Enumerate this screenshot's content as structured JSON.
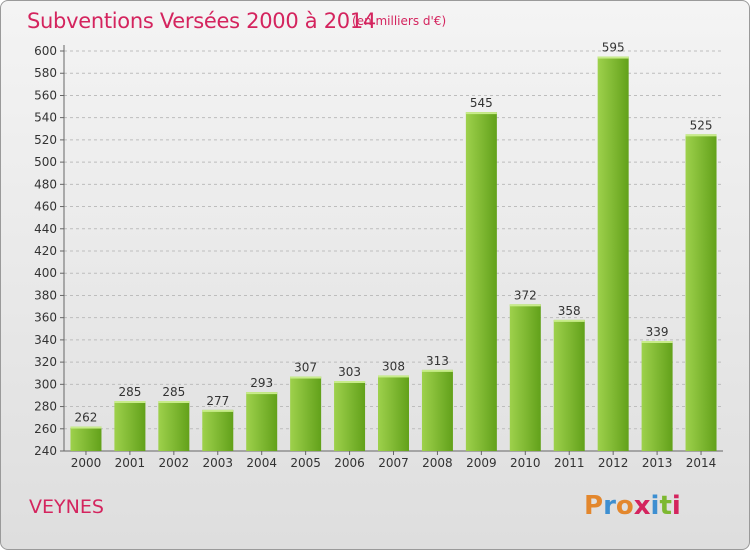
{
  "header": {
    "title": "Subventions Versées 2000 à 2014",
    "subtitle": "(en milliers d'€)"
  },
  "footer": {
    "commune": "VEYNES",
    "logo": "Proxiti"
  },
  "colors": {
    "title": "#d4245e",
    "bar_light": "#9ed14c",
    "bar_dark": "#62a11a",
    "logo_letters": [
      "#e3872d",
      "#3d8fd1",
      "#e3872d",
      "#d4245e",
      "#3d8fd1",
      "#7db830",
      "#d4245e"
    ]
  },
  "chart_data": {
    "type": "bar",
    "title": "Subventions Versées 2000 à 2014",
    "subtitle": "(en milliers d'€)",
    "xlabel": "",
    "ylabel": "",
    "categories": [
      "2000",
      "2001",
      "2002",
      "2003",
      "2004",
      "2005",
      "2006",
      "2007",
      "2008",
      "2009",
      "2010",
      "2011",
      "2012",
      "2013",
      "2014"
    ],
    "values": [
      262,
      285,
      285,
      277,
      293,
      307,
      303,
      308,
      313,
      545,
      372,
      358,
      595,
      339,
      525
    ],
    "ylim": [
      240,
      600
    ],
    "yticks": [
      240,
      260,
      280,
      300,
      320,
      340,
      360,
      380,
      400,
      420,
      440,
      460,
      480,
      500,
      520,
      540,
      560,
      580,
      600
    ],
    "grid": "horizontal dashed",
    "data_labels": true,
    "legend": "none"
  }
}
